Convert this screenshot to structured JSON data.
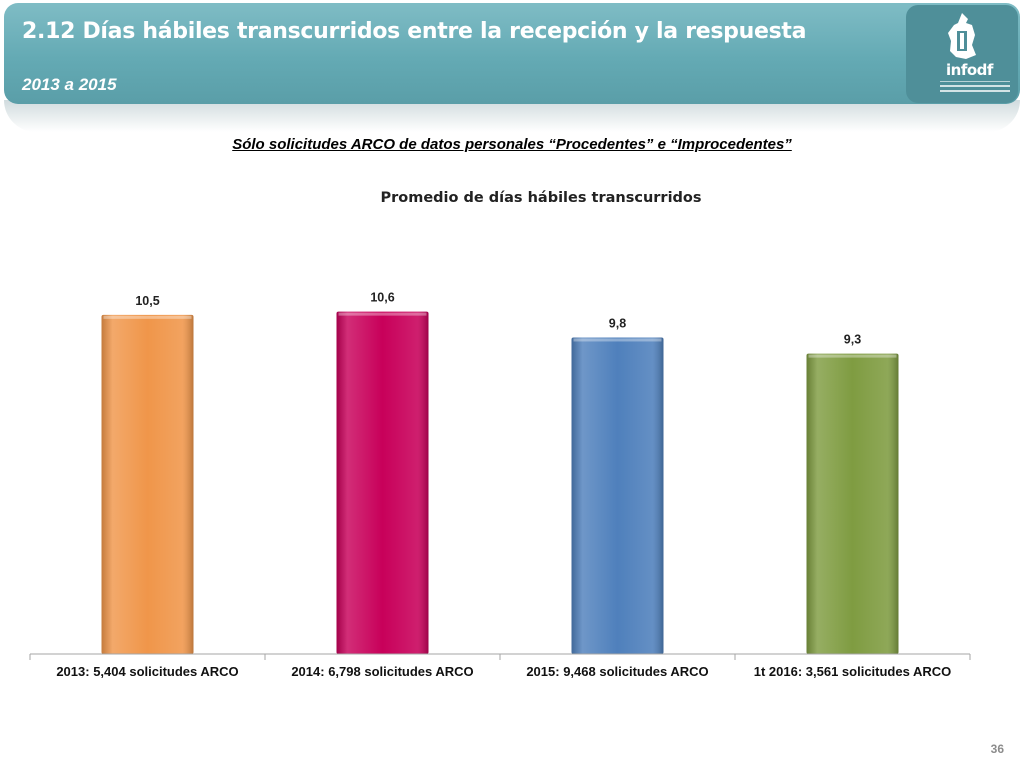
{
  "header": {
    "title": "2.12 Días hábiles transcurridos entre la recepción y la respuesta",
    "subtitle": "2013 a 2015",
    "logo_text": "infodf"
  },
  "chart_heading": "Sólo solicitudes ARCO de datos personales “Procedentes” e “Improcedentes”",
  "page_number": "36",
  "chart_data": {
    "type": "bar",
    "title": "Promedio de días hábiles transcurridos",
    "categories": [
      "2013: 5,404 solicitudes ARCO",
      "2014: 6,798 solicitudes ARCO",
      "2015: 9,468 solicitudes ARCO",
      "1t 2016: 3,561 solicitudes ARCO"
    ],
    "values": [
      10.5,
      10.6,
      9.8,
      9.3
    ],
    "value_labels": [
      "10,5",
      "10,6",
      "9,8",
      "9,3"
    ],
    "bar_colors": [
      "#f0964a",
      "#c8005a",
      "#4f80bc",
      "#7f9c41"
    ],
    "ylim": [
      0,
      11
    ],
    "grid": false,
    "legend": "none"
  }
}
